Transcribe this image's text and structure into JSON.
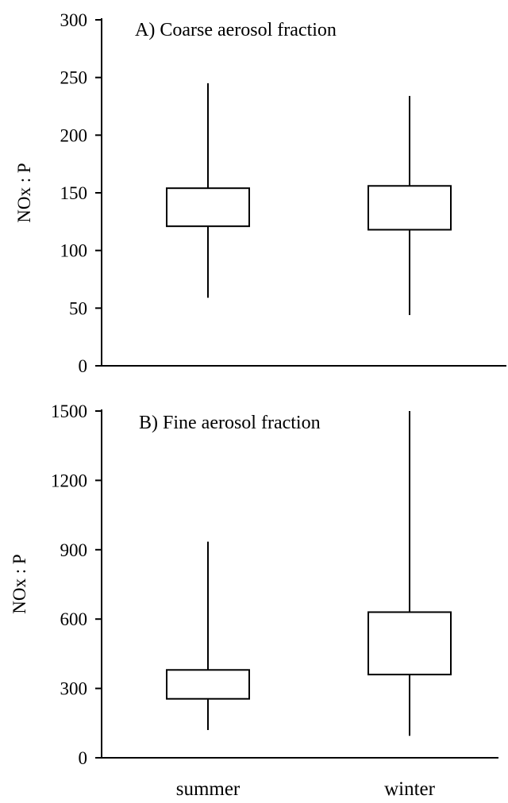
{
  "chart_data": [
    {
      "type": "box",
      "title": "A) Coarse aerosol fraction",
      "ylabel": "NOx : P",
      "xlabel": "",
      "ylim": [
        0,
        300
      ],
      "yticks": [
        0,
        50,
        100,
        150,
        200,
        250,
        300
      ],
      "categories": [
        "summer",
        "winter"
      ],
      "boxes": [
        {
          "category": "summer",
          "min": 59,
          "q1": 121,
          "q3": 154,
          "max": 245
        },
        {
          "category": "winter",
          "min": 44,
          "q1": 118,
          "q3": 156,
          "max": 234
        }
      ],
      "grid": false
    },
    {
      "type": "box",
      "title": "B) Fine aerosol fraction",
      "ylabel": "NOx : P",
      "xlabel": "",
      "ylim": [
        0,
        1500
      ],
      "yticks": [
        0,
        300,
        600,
        900,
        1200,
        1500
      ],
      "categories": [
        "summer",
        "winter"
      ],
      "boxes": [
        {
          "category": "summer",
          "min": 120,
          "q1": 255,
          "q3": 380,
          "max": 935
        },
        {
          "category": "winter",
          "min": 95,
          "q1": 360,
          "q3": 630,
          "max": 1500
        }
      ],
      "grid": false
    }
  ]
}
